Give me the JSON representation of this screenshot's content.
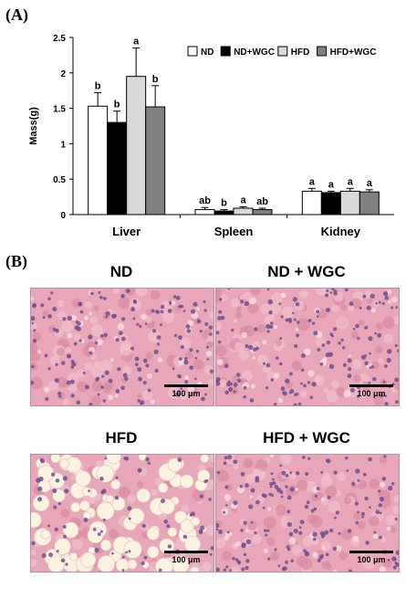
{
  "panel_a_label": "(A)",
  "panel_b_label": "(B)",
  "chart_data": {
    "type": "bar",
    "categories": [
      "Liver",
      "Spleen",
      "Kidney"
    ],
    "ylabel": "Mass(g)",
    "ylim": [
      0,
      2.5
    ],
    "yticks": [
      "0",
      "0.5",
      "1",
      "1.5",
      "2",
      "2.5"
    ],
    "legend_position": "top-right",
    "series": [
      {
        "name": "ND",
        "color": "#ffffff",
        "values": [
          1.53,
          0.07,
          0.33
        ],
        "errors": [
          0.19,
          0.03,
          0.04
        ],
        "letters": [
          "b",
          "ab",
          "a"
        ]
      },
      {
        "name": "ND+WGC",
        "color": "#000000",
        "values": [
          1.3,
          0.05,
          0.31
        ],
        "errors": [
          0.16,
          0.02,
          0.02
        ],
        "letters": [
          "b",
          "b",
          "a"
        ]
      },
      {
        "name": "HFD",
        "color": "#d9d9d9",
        "values": [
          1.95,
          0.09,
          0.33
        ],
        "errors": [
          0.4,
          0.02,
          0.04
        ],
        "letters": [
          "a",
          "a",
          "a"
        ]
      },
      {
        "name": "HFD+WGC",
        "color": "#808080",
        "values": [
          1.52,
          0.07,
          0.32
        ],
        "errors": [
          0.3,
          0.02,
          0.03
        ],
        "letters": [
          "b",
          "ab",
          "a"
        ]
      }
    ]
  },
  "micrographs": [
    {
      "title": "ND",
      "scale": "100 μm",
      "type": "normal"
    },
    {
      "title": "ND + WGC",
      "scale": "100 μm",
      "type": "normal"
    },
    {
      "title": "HFD",
      "scale": "100 μm",
      "type": "fatty"
    },
    {
      "title": "HFD + WGC",
      "scale": "100 μm",
      "type": "normal"
    }
  ]
}
